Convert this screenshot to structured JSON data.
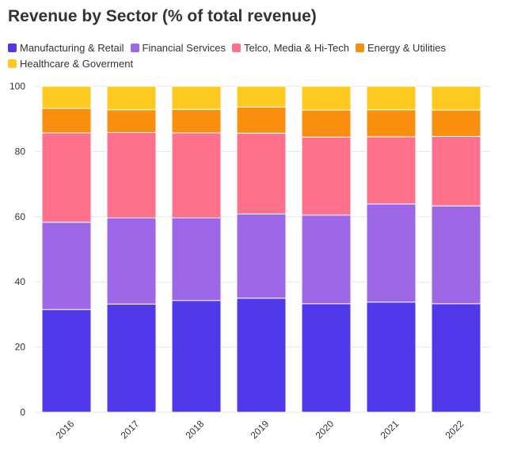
{
  "chart_data": {
    "type": "bar",
    "stacked": true,
    "title": "Revenue by Sector (% of total revenue)",
    "xlabel": "",
    "ylabel": "",
    "ylim": [
      0,
      100
    ],
    "yticks": [
      "0",
      "20",
      "40",
      "60",
      "80",
      "100"
    ],
    "grid": true,
    "legend_position": "top",
    "categories": [
      "2016",
      "2017",
      "2018",
      "2019",
      "2020",
      "2021",
      "2022"
    ],
    "series": [
      {
        "name": "Manufacturing & Retail",
        "color": "#5039e8",
        "values": [
          31.5,
          33.2,
          34.3,
          35.0,
          33.3,
          33.8,
          33.3
        ]
      },
      {
        "name": "Financial Services",
        "color": "#9d67e8",
        "values": [
          26.8,
          26.4,
          25.3,
          25.8,
          27.2,
          30.1,
          30.0
        ]
      },
      {
        "name": "Telco, Media & Hi-Tech",
        "color": "#ff708c",
        "values": [
          27.4,
          26.2,
          26.1,
          24.8,
          23.9,
          20.6,
          21.3
        ]
      },
      {
        "name": "Energy & Utilities",
        "color": "#fa8e0f",
        "values": [
          7.5,
          7.0,
          7.2,
          8.0,
          8.3,
          8.3,
          8.1
        ]
      },
      {
        "name": "Healthcare & Goverment",
        "color": "#ffc91f",
        "values": [
          6.8,
          7.2,
          7.1,
          6.4,
          7.3,
          7.2,
          7.3
        ]
      }
    ]
  }
}
